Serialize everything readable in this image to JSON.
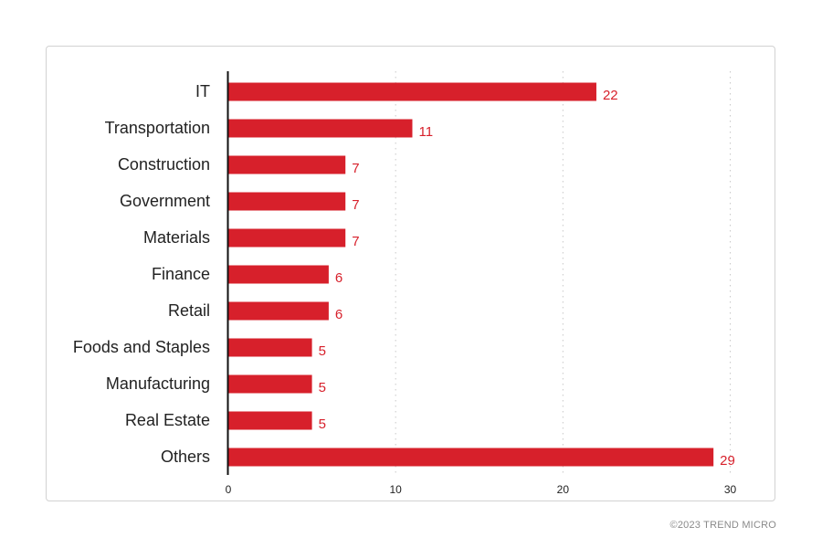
{
  "chart_data": {
    "type": "bar",
    "orientation": "horizontal",
    "categories": [
      "IT",
      "Transportation",
      "Construction",
      "Government",
      "Materials",
      "Finance",
      "Retail",
      "Foods and Staples",
      "Manufacturing",
      "Real Estate",
      "Others"
    ],
    "values": [
      22,
      11,
      7,
      7,
      7,
      6,
      6,
      5,
      5,
      5,
      29
    ],
    "xlim": [
      0,
      30
    ],
    "xticks": [
      0,
      10,
      20,
      30
    ],
    "grid": "vertical dotted",
    "legend": "none",
    "title": "",
    "xlabel": "",
    "ylabel": ""
  },
  "colors": {
    "bar": "#d7202b",
    "value_label": "#d7202b",
    "axis": "#111111",
    "grid": "#c8c8c8",
    "text": "#222222"
  },
  "footer": {
    "copyright": "©2023 TREND MICRO"
  }
}
